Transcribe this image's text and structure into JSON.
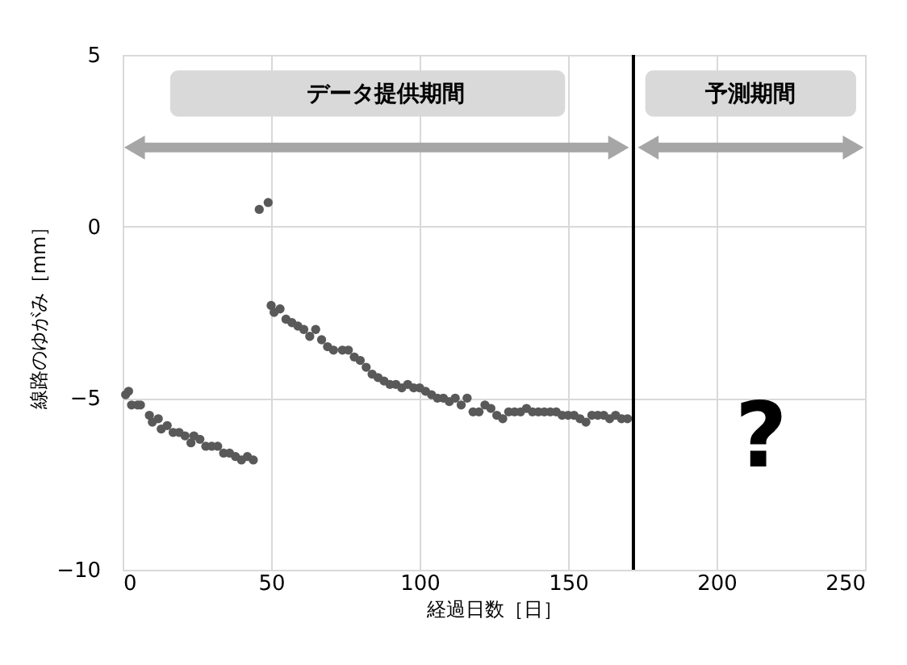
{
  "chart_data": {
    "type": "scatter",
    "xlabel": "経過日数［日］",
    "ylabel": "線路のゆがみ［mm］",
    "x": [
      1,
      2,
      3,
      5,
      6,
      9,
      10,
      12,
      13,
      15,
      17,
      19,
      21,
      23,
      24,
      26,
      28,
      30,
      32,
      34,
      36,
      38,
      40,
      42,
      44,
      46,
      49,
      50,
      51,
      53,
      55,
      57,
      59,
      61,
      63,
      65,
      67,
      69,
      71,
      74,
      76,
      78,
      80,
      82,
      84,
      86,
      88,
      90,
      92,
      94,
      96,
      98,
      100,
      102,
      104,
      106,
      108,
      110,
      112,
      114,
      116,
      118,
      120,
      122,
      124,
      126,
      128,
      130,
      132,
      134,
      136,
      138,
      140,
      142,
      144,
      146,
      148,
      150,
      152,
      154,
      156,
      158,
      160,
      162,
      164,
      166,
      168,
      170
    ],
    "series": [
      {
        "color": "#595959",
        "values": [
          -4.9,
          -4.8,
          -5.2,
          -5.2,
          -5.2,
          -5.5,
          -5.7,
          -5.6,
          -5.9,
          -5.8,
          -6.0,
          -6.0,
          -6.1,
          -6.3,
          -6.1,
          -6.2,
          -6.4,
          -6.4,
          -6.4,
          -6.6,
          -6.6,
          -6.7,
          -6.8,
          -6.7,
          -6.8,
          0.5,
          0.7,
          -2.3,
          -2.5,
          -2.4,
          -2.7,
          -2.8,
          -2.9,
          -3.0,
          -3.2,
          -3.0,
          -3.3,
          -3.5,
          -3.6,
          -3.6,
          -3.6,
          -3.8,
          -3.9,
          -4.1,
          -4.3,
          -4.4,
          -4.5,
          -4.6,
          -4.6,
          -4.7,
          -4.6,
          -4.7,
          -4.7,
          -4.8,
          -4.9,
          -5.0,
          -5.0,
          -5.1,
          -5.0,
          -5.2,
          -5.0,
          -5.4,
          -5.4,
          -5.2,
          -5.3,
          -5.5,
          -5.6,
          -5.4,
          -5.4,
          -5.4,
          -5.3,
          -5.4,
          -5.4,
          -5.4,
          -5.4,
          -5.4,
          -5.5,
          -5.5,
          -5.5,
          -5.6,
          -5.7,
          -5.5,
          -5.5,
          -5.5,
          -5.6,
          -5.5,
          -5.6,
          -5.6
        ]
      }
    ],
    "xlim": [
      0,
      250
    ],
    "xticks": [
      0,
      50,
      100,
      150,
      200,
      250
    ],
    "ylim": [
      -10,
      5
    ],
    "yticks": [
      -10,
      -5,
      0,
      5
    ],
    "grid": true,
    "marker": "circle",
    "ref_lines": [
      {
        "axis": "x",
        "value": 172,
        "color": "#000000"
      }
    ],
    "annotations": [
      "データ提供期間",
      "予測期間",
      "?"
    ]
  }
}
